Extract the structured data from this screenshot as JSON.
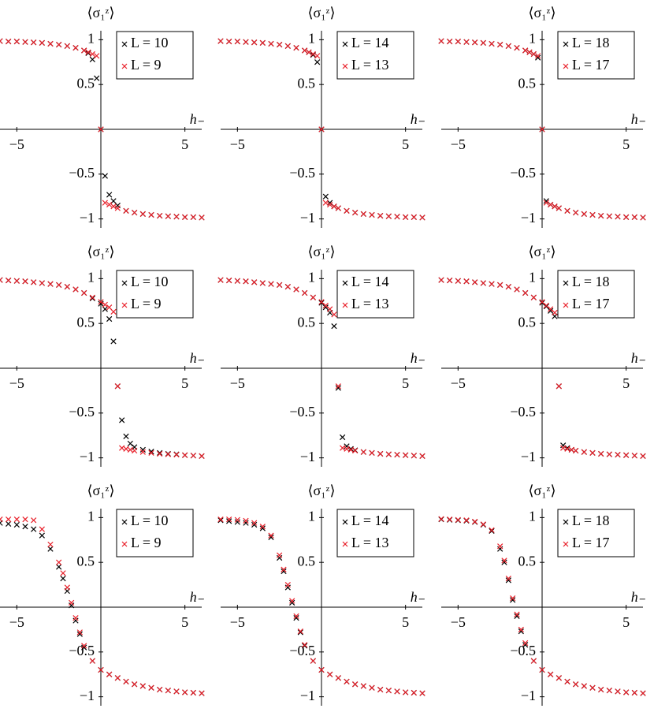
{
  "chart_data": [
    {
      "type": "scatter",
      "xlabel": "h₋",
      "ylabel": "⟨σ₁ᶻ⟩",
      "legend": "upper right",
      "xlim": [
        -6,
        6
      ],
      "ylim": [
        -1.1,
        1.1
      ],
      "xticks": [
        {
          "value": -5,
          "label": "−5"
        },
        5
      ],
      "yticks": [
        {
          "value": -1,
          "label": "−1"
        },
        {
          "value": -0.5,
          "label": "−0.5"
        },
        0.5,
        1
      ],
      "x": [
        -6,
        -5.5,
        -5,
        -4.5,
        -4,
        -3.5,
        -3,
        -2.5,
        -2,
        -1.5,
        -1,
        -0.75,
        -0.5,
        -0.25,
        0,
        0.25,
        0.5,
        0.75,
        1,
        1.5,
        2,
        2.5,
        3,
        3.5,
        4,
        4.5,
        5,
        5.5,
        6
      ],
      "series": [
        {
          "name": "L = 10",
          "color": "#000000",
          "values": [
            0.985,
            0.98,
            0.98,
            0.975,
            0.97,
            0.965,
            0.955,
            0.945,
            0.93,
            0.91,
            0.88,
            0.85,
            0.78,
            0.57,
            0,
            -0.52,
            -0.73,
            -0.8,
            -0.85,
            -0.91,
            -0.93,
            -0.945,
            -0.955,
            -0.965,
            -0.97,
            -0.975,
            -0.98,
            -0.98,
            -0.985
          ]
        },
        {
          "name": "L = 9",
          "color": "#e8202a",
          "values": [
            0.985,
            0.98,
            0.98,
            0.975,
            0.97,
            0.965,
            0.955,
            0.945,
            0.93,
            0.91,
            0.88,
            0.86,
            0.84,
            0.82,
            0,
            -0.82,
            -0.84,
            -0.86,
            -0.88,
            -0.91,
            -0.93,
            -0.945,
            -0.955,
            -0.965,
            -0.97,
            -0.975,
            -0.98,
            -0.98,
            -0.985
          ]
        }
      ]
    },
    {
      "type": "scatter",
      "xlabel": "h₋",
      "ylabel": "⟨σ₁ᶻ⟩",
      "legend": "upper right",
      "xlim": [
        -6,
        6
      ],
      "ylim": [
        -1.1,
        1.1
      ],
      "xticks": [
        {
          "value": -5,
          "label": "−5"
        },
        5
      ],
      "yticks": [
        {
          "value": -1,
          "label": "−1"
        },
        {
          "value": -0.5,
          "label": "−0.5"
        },
        0.5,
        1
      ],
      "x": [
        -6,
        -5.5,
        -5,
        -4.5,
        -4,
        -3.5,
        -3,
        -2.5,
        -2,
        -1.5,
        -1,
        -0.75,
        -0.5,
        -0.25,
        0,
        0.25,
        0.5,
        0.75,
        1,
        1.5,
        2,
        2.5,
        3,
        3.5,
        4,
        4.5,
        5,
        5.5,
        6
      ],
      "series": [
        {
          "name": "L = 14",
          "color": "#000000",
          "values": [
            0.985,
            0.98,
            0.98,
            0.975,
            0.97,
            0.965,
            0.955,
            0.945,
            0.93,
            0.91,
            0.88,
            0.86,
            0.83,
            0.75,
            0,
            -0.75,
            -0.82,
            -0.86,
            -0.88,
            -0.91,
            -0.93,
            -0.945,
            -0.955,
            -0.965,
            -0.97,
            -0.975,
            -0.98,
            -0.98,
            -0.985
          ]
        },
        {
          "name": "L = 13",
          "color": "#e8202a",
          "values": [
            0.985,
            0.98,
            0.98,
            0.975,
            0.97,
            0.965,
            0.955,
            0.945,
            0.93,
            0.91,
            0.88,
            0.86,
            0.84,
            0.82,
            0,
            -0.82,
            -0.84,
            -0.86,
            -0.88,
            -0.91,
            -0.93,
            -0.945,
            -0.955,
            -0.965,
            -0.97,
            -0.975,
            -0.98,
            -0.98,
            -0.985
          ]
        }
      ]
    },
    {
      "type": "scatter",
      "xlabel": "h₋",
      "ylabel": "⟨σ₁ᶻ⟩",
      "legend": "upper right",
      "xlim": [
        -6,
        6
      ],
      "ylim": [
        -1.1,
        1.1
      ],
      "xticks": [
        {
          "value": -5,
          "label": "−5"
        },
        5
      ],
      "yticks": [
        {
          "value": -1,
          "label": "−1"
        },
        {
          "value": -0.5,
          "label": "−0.5"
        },
        0.5,
        1
      ],
      "x": [
        -6,
        -5.5,
        -5,
        -4.5,
        -4,
        -3.5,
        -3,
        -2.5,
        -2,
        -1.5,
        -1,
        -0.75,
        -0.5,
        -0.25,
        0,
        0.25,
        0.5,
        0.75,
        1,
        1.5,
        2,
        2.5,
        3,
        3.5,
        4,
        4.5,
        5,
        5.5,
        6
      ],
      "series": [
        {
          "name": "L = 18",
          "color": "#000000",
          "values": [
            0.985,
            0.98,
            0.98,
            0.975,
            0.97,
            0.965,
            0.955,
            0.945,
            0.93,
            0.91,
            0.88,
            0.86,
            0.84,
            0.8,
            0,
            -0.8,
            -0.84,
            -0.86,
            -0.88,
            -0.91,
            -0.93,
            -0.945,
            -0.955,
            -0.965,
            -0.97,
            -0.975,
            -0.98,
            -0.98,
            -0.985
          ]
        },
        {
          "name": "L = 17",
          "color": "#e8202a",
          "values": [
            0.985,
            0.98,
            0.98,
            0.975,
            0.97,
            0.965,
            0.955,
            0.945,
            0.93,
            0.91,
            0.88,
            0.86,
            0.84,
            0.82,
            0,
            -0.82,
            -0.84,
            -0.86,
            -0.88,
            -0.91,
            -0.93,
            -0.945,
            -0.955,
            -0.965,
            -0.97,
            -0.975,
            -0.98,
            -0.98,
            -0.985
          ]
        }
      ]
    },
    {
      "type": "scatter",
      "xlabel": "h₋",
      "ylabel": "⟨σ₁ᶻ⟩",
      "legend": "upper right",
      "xlim": [
        -6,
        6
      ],
      "ylim": [
        -1.1,
        1.1
      ],
      "xticks": [
        {
          "value": -5,
          "label": "−5"
        },
        5
      ],
      "yticks": [
        {
          "value": -1,
          "label": "−1"
        },
        {
          "value": -0.5,
          "label": "−0.5"
        },
        0.5,
        1
      ],
      "x": [
        -6,
        -5.5,
        -5,
        -4.5,
        -4,
        -3.5,
        -3,
        -2.5,
        -2,
        -1.5,
        -1,
        -0.5,
        0,
        0.25,
        0.5,
        0.75,
        1,
        1.25,
        1.5,
        1.75,
        2,
        2.5,
        3,
        3.5,
        4,
        4.5,
        5,
        5.5,
        6
      ],
      "series": [
        {
          "name": "L = 10",
          "color": "#000000",
          "values": [
            0.985,
            0.98,
            0.975,
            0.97,
            0.96,
            0.95,
            0.94,
            0.93,
            0.91,
            0.88,
            0.84,
            0.78,
            0.72,
            0.66,
            0.55,
            0.3,
            -0.2,
            -0.58,
            -0.76,
            -0.84,
            -0.88,
            -0.91,
            -0.93,
            -0.945,
            -0.955,
            -0.96,
            -0.97,
            -0.975,
            -0.98
          ]
        },
        {
          "name": "L = 9",
          "color": "#e8202a",
          "values": [
            0.985,
            0.98,
            0.975,
            0.97,
            0.96,
            0.95,
            0.94,
            0.93,
            0.91,
            0.88,
            0.84,
            0.79,
            0.74,
            0.71,
            0.68,
            0.63,
            -0.2,
            -0.89,
            -0.9,
            -0.91,
            -0.92,
            -0.935,
            -0.945,
            -0.955,
            -0.96,
            -0.965,
            -0.97,
            -0.975,
            -0.98
          ]
        }
      ]
    },
    {
      "type": "scatter",
      "xlabel": "h₋",
      "ylabel": "⟨σ₁ᶻ⟩",
      "legend": "upper right",
      "xlim": [
        -6,
        6
      ],
      "ylim": [
        -1.1,
        1.1
      ],
      "xticks": [
        {
          "value": -5,
          "label": "−5"
        },
        5
      ],
      "yticks": [
        {
          "value": -1,
          "label": "−1"
        },
        {
          "value": -0.5,
          "label": "−0.5"
        },
        0.5,
        1
      ],
      "x": [
        -6,
        -5.5,
        -5,
        -4.5,
        -4,
        -3.5,
        -3,
        -2.5,
        -2,
        -1.5,
        -1,
        -0.5,
        0,
        0.25,
        0.5,
        0.75,
        1,
        1.25,
        1.5,
        1.75,
        2,
        2.5,
        3,
        3.5,
        4,
        4.5,
        5,
        5.5,
        6
      ],
      "series": [
        {
          "name": "L = 14",
          "color": "#000000",
          "values": [
            0.985,
            0.98,
            0.975,
            0.97,
            0.96,
            0.95,
            0.94,
            0.93,
            0.91,
            0.88,
            0.84,
            0.79,
            0.73,
            0.68,
            0.62,
            0.47,
            -0.22,
            -0.77,
            -0.87,
            -0.9,
            -0.915,
            -0.935,
            -0.945,
            -0.955,
            -0.96,
            -0.965,
            -0.97,
            -0.975,
            -0.98
          ]
        },
        {
          "name": "L = 13",
          "color": "#e8202a",
          "values": [
            0.985,
            0.98,
            0.975,
            0.97,
            0.96,
            0.95,
            0.94,
            0.93,
            0.91,
            0.88,
            0.84,
            0.79,
            0.74,
            0.7,
            0.66,
            0.6,
            -0.2,
            -0.89,
            -0.9,
            -0.91,
            -0.92,
            -0.935,
            -0.945,
            -0.955,
            -0.96,
            -0.965,
            -0.97,
            -0.975,
            -0.98
          ]
        }
      ]
    },
    {
      "type": "scatter",
      "xlabel": "h₋",
      "ylabel": "⟨σ₁ᶻ⟩",
      "legend": "upper right",
      "xlim": [
        -6,
        6
      ],
      "ylim": [
        -1.1,
        1.1
      ],
      "xticks": [
        {
          "value": -5,
          "label": "−5"
        },
        5
      ],
      "yticks": [
        {
          "value": -1,
          "label": "−1"
        },
        {
          "value": -0.5,
          "label": "−0.5"
        },
        0.5,
        1
      ],
      "x": [
        -6,
        -5.5,
        -5,
        -4.5,
        -4,
        -3.5,
        -3,
        -2.5,
        -2,
        -1.5,
        -1,
        -0.5,
        0,
        0.25,
        0.5,
        0.75,
        1,
        1.25,
        1.5,
        1.75,
        2,
        2.5,
        3,
        3.5,
        4,
        4.5,
        5,
        5.5,
        6
      ],
      "series": [
        {
          "name": "L = 18",
          "color": "#000000",
          "values": [
            0.985,
            0.98,
            0.975,
            0.97,
            0.96,
            0.95,
            0.94,
            0.93,
            0.91,
            0.88,
            0.84,
            0.79,
            0.73,
            0.69,
            0.64,
            0.58,
            -0.2,
            -0.86,
            -0.89,
            -0.91,
            -0.92,
            -0.935,
            -0.945,
            -0.955,
            -0.96,
            -0.965,
            -0.97,
            -0.975,
            -0.98
          ]
        },
        {
          "name": "L = 17",
          "color": "#e8202a",
          "values": [
            0.985,
            0.98,
            0.975,
            0.97,
            0.96,
            0.95,
            0.94,
            0.93,
            0.91,
            0.88,
            0.84,
            0.79,
            0.74,
            0.7,
            0.66,
            0.62,
            -0.2,
            -0.89,
            -0.9,
            -0.91,
            -0.92,
            -0.935,
            -0.945,
            -0.955,
            -0.96,
            -0.965,
            -0.97,
            -0.975,
            -0.98
          ]
        }
      ]
    },
    {
      "type": "scatter",
      "xlabel": "h₋",
      "ylabel": "⟨σ₁ᶻ⟩",
      "legend": "upper right",
      "xlim": [
        -6,
        6
      ],
      "ylim": [
        -1.1,
        1.1
      ],
      "xticks": [
        {
          "value": -5,
          "label": "−5"
        },
        5
      ],
      "yticks": [
        {
          "value": -1,
          "label": "−1"
        },
        {
          "value": -0.5,
          "label": "−0.5"
        },
        0.5,
        1
      ],
      "x": [
        -6,
        -5.5,
        -5,
        -4.5,
        -4,
        -3.5,
        -3,
        -2.5,
        -2.25,
        -2,
        -1.75,
        -1.5,
        -1.25,
        -1,
        -0.5,
        0,
        0.5,
        1,
        1.5,
        2,
        2.5,
        3,
        3.5,
        4,
        4.5,
        5,
        5.5,
        6
      ],
      "series": [
        {
          "name": "L = 10",
          "color": "#000000",
          "values": [
            0.94,
            0.93,
            0.92,
            0.9,
            0.87,
            0.8,
            0.65,
            0.45,
            0.32,
            0.18,
            0.02,
            -0.15,
            -0.3,
            -0.45,
            -0.6,
            -0.7,
            -0.75,
            -0.79,
            -0.83,
            -0.86,
            -0.88,
            -0.9,
            -0.92,
            -0.93,
            -0.94,
            -0.95,
            -0.955,
            -0.96
          ]
        },
        {
          "name": "L = 9",
          "color": "#e8202a",
          "values": [
            0.98,
            0.98,
            0.98,
            0.98,
            0.97,
            0.87,
            0.7,
            0.5,
            0.38,
            0.22,
            0.05,
            -0.12,
            -0.28,
            -0.43,
            -0.6,
            -0.7,
            -0.75,
            -0.79,
            -0.83,
            -0.86,
            -0.88,
            -0.9,
            -0.92,
            -0.93,
            -0.94,
            -0.95,
            -0.955,
            -0.96
          ]
        }
      ]
    },
    {
      "type": "scatter",
      "xlabel": "h₋",
      "ylabel": "⟨σ₁ᶻ⟩",
      "legend": "upper right",
      "xlim": [
        -6,
        6
      ],
      "ylim": [
        -1.1,
        1.1
      ],
      "xticks": [
        {
          "value": -5,
          "label": "−5"
        },
        5
      ],
      "yticks": [
        {
          "value": -1,
          "label": "−1"
        },
        {
          "value": -0.5,
          "label": "−0.5"
        },
        0.5,
        1
      ],
      "x": [
        -6,
        -5.5,
        -5,
        -4.5,
        -4,
        -3.5,
        -3,
        -2.5,
        -2.25,
        -2,
        -1.75,
        -1.5,
        -1.25,
        -1,
        -0.5,
        0,
        0.5,
        1,
        1.5,
        2,
        2.5,
        3,
        3.5,
        4,
        4.5,
        5,
        5.5,
        6
      ],
      "series": [
        {
          "name": "L = 14",
          "color": "#000000",
          "values": [
            0.97,
            0.96,
            0.95,
            0.94,
            0.92,
            0.88,
            0.78,
            0.55,
            0.4,
            0.22,
            0.05,
            -0.12,
            -0.28,
            -0.43,
            -0.6,
            -0.7,
            -0.75,
            -0.79,
            -0.83,
            -0.86,
            -0.88,
            -0.9,
            -0.92,
            -0.93,
            -0.94,
            -0.95,
            -0.955,
            -0.96
          ]
        },
        {
          "name": "L = 13",
          "color": "#e8202a",
          "values": [
            0.98,
            0.98,
            0.975,
            0.965,
            0.94,
            0.9,
            0.8,
            0.58,
            0.42,
            0.25,
            0.07,
            -0.1,
            -0.27,
            -0.42,
            -0.6,
            -0.7,
            -0.75,
            -0.79,
            -0.83,
            -0.86,
            -0.88,
            -0.9,
            -0.92,
            -0.93,
            -0.94,
            -0.95,
            -0.955,
            -0.96
          ]
        }
      ]
    },
    {
      "type": "scatter",
      "xlabel": "h₋",
      "ylabel": "⟨σ₁ᶻ⟩",
      "legend": "upper right",
      "xlim": [
        -6,
        6
      ],
      "ylim": [
        -1.1,
        1.1
      ],
      "xticks": [
        {
          "value": -5,
          "label": "−5"
        },
        5
      ],
      "yticks": [
        {
          "value": -1,
          "label": "−1"
        },
        {
          "value": -0.5,
          "label": "−0.5"
        },
        0.5,
        1
      ],
      "x": [
        -6,
        -5.5,
        -5,
        -4.5,
        -4,
        -3.5,
        -3,
        -2.5,
        -2.25,
        -2,
        -1.75,
        -1.5,
        -1.25,
        -1,
        -0.5,
        0,
        0.5,
        1,
        1.5,
        2,
        2.5,
        3,
        3.5,
        4,
        4.5,
        5,
        5.5,
        6
      ],
      "series": [
        {
          "name": "L = 18",
          "color": "#000000",
          "values": [
            0.98,
            0.975,
            0.97,
            0.965,
            0.95,
            0.92,
            0.85,
            0.65,
            0.5,
            0.3,
            0.08,
            -0.1,
            -0.27,
            -0.42,
            -0.6,
            -0.7,
            -0.75,
            -0.79,
            -0.83,
            -0.86,
            -0.88,
            -0.9,
            -0.92,
            -0.93,
            -0.94,
            -0.95,
            -0.955,
            -0.96
          ]
        },
        {
          "name": "L = 17",
          "color": "#e8202a",
          "values": [
            0.985,
            0.98,
            0.975,
            0.97,
            0.955,
            0.925,
            0.86,
            0.68,
            0.52,
            0.32,
            0.1,
            -0.08,
            -0.25,
            -0.4,
            -0.6,
            -0.7,
            -0.75,
            -0.79,
            -0.83,
            -0.86,
            -0.88,
            -0.9,
            -0.92,
            -0.93,
            -0.94,
            -0.95,
            -0.955,
            -0.96
          ]
        }
      ]
    }
  ]
}
